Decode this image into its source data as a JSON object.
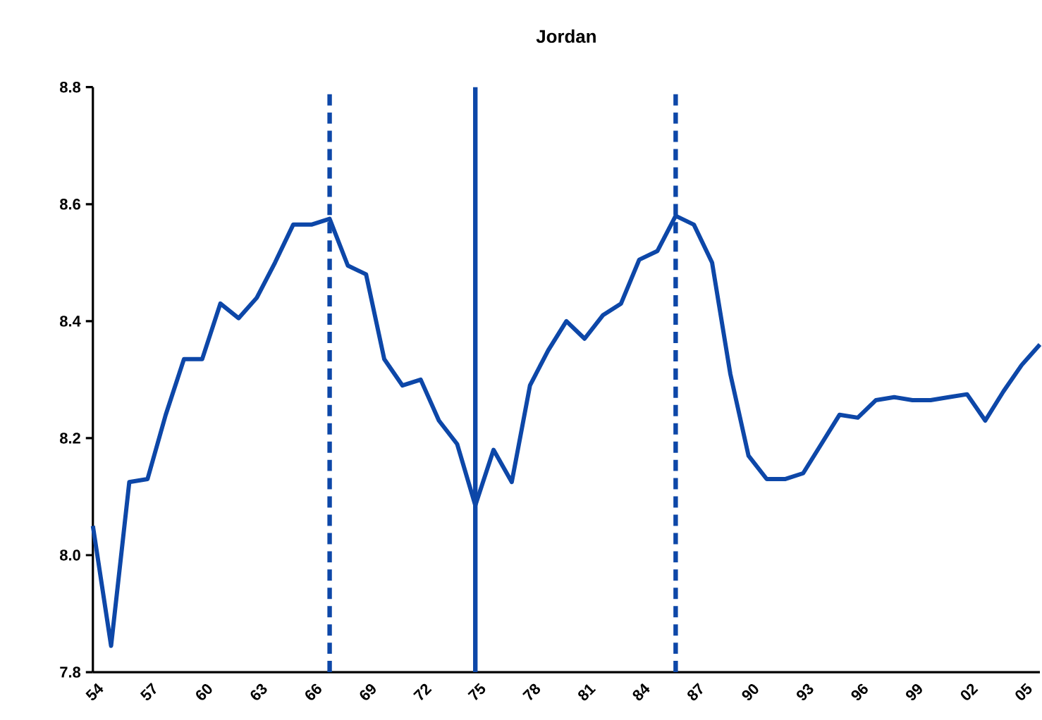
{
  "chart_data": {
    "type": "line",
    "title": "Jordan",
    "x": [
      1954,
      1955,
      1956,
      1957,
      1958,
      1959,
      1960,
      1961,
      1962,
      1963,
      1964,
      1965,
      1966,
      1967,
      1968,
      1969,
      1970,
      1971,
      1972,
      1973,
      1974,
      1975,
      1976,
      1977,
      1978,
      1979,
      1980,
      1981,
      1982,
      1983,
      1984,
      1985,
      1986,
      1987,
      1988,
      1989,
      1990,
      1991,
      1992,
      1993,
      1994,
      1995,
      1996,
      1997,
      1998,
      1999,
      2000,
      2001,
      2002,
      2003,
      2004,
      2005,
      2006
    ],
    "series": [
      {
        "color": "#0d47a8",
        "values": [
          8.05,
          7.845,
          8.125,
          8.13,
          8.24,
          8.335,
          8.335,
          8.43,
          8.405,
          8.44,
          8.5,
          8.565,
          8.565,
          8.575,
          8.495,
          8.48,
          8.335,
          8.29,
          8.3,
          8.23,
          8.19,
          8.085,
          8.18,
          8.125,
          8.29,
          8.35,
          8.4,
          8.37,
          8.41,
          8.43,
          8.505,
          8.52,
          8.58,
          8.565,
          8.5,
          8.31,
          8.17,
          8.13,
          8.13,
          8.14,
          8.19,
          8.24,
          8.235,
          8.265,
          8.27,
          8.265,
          8.265,
          8.27,
          8.275,
          8.23,
          8.28,
          8.325,
          8.36
        ]
      }
    ],
    "marker": "none",
    "line_style": "solid",
    "xlim": [
      1954,
      2006
    ],
    "xticks": [
      {
        "value": 1954,
        "label": "54"
      },
      {
        "value": 1957,
        "label": "57"
      },
      {
        "value": 1960,
        "label": "60"
      },
      {
        "value": 1963,
        "label": "63"
      },
      {
        "value": 1966,
        "label": "66"
      },
      {
        "value": 1969,
        "label": "69"
      },
      {
        "value": 1972,
        "label": "72"
      },
      {
        "value": 1975,
        "label": "75"
      },
      {
        "value": 1978,
        "label": "78"
      },
      {
        "value": 1981,
        "label": "81"
      },
      {
        "value": 1984,
        "label": "84"
      },
      {
        "value": 1987,
        "label": "87"
      },
      {
        "value": 1990,
        "label": "90"
      },
      {
        "value": 1993,
        "label": "93"
      },
      {
        "value": 1996,
        "label": "96"
      },
      {
        "value": 1999,
        "label": "99"
      },
      {
        "value": 2002,
        "label": "02"
      },
      {
        "value": 2005,
        "label": "05"
      }
    ],
    "ylim": [
      7.8,
      8.8
    ],
    "yticks": [
      {
        "value": 7.8,
        "label": "7.8"
      },
      {
        "value": 8.0,
        "label": "8.0"
      },
      {
        "value": 8.2,
        "label": "8.2"
      },
      {
        "value": 8.4,
        "label": "8.4"
      },
      {
        "value": 8.6,
        "label": "8.6"
      },
      {
        "value": 8.8,
        "label": "8.8"
      }
    ],
    "ref_lines": [
      {
        "axis": "x",
        "value": 1967,
        "line_style": "dashed",
        "color": "#0d47a8"
      },
      {
        "axis": "x",
        "value": 1975,
        "line_style": "solid",
        "color": "#0d47a8"
      },
      {
        "axis": "x",
        "value": 1986,
        "line_style": "dashed",
        "color": "#0d47a8"
      }
    ]
  }
}
